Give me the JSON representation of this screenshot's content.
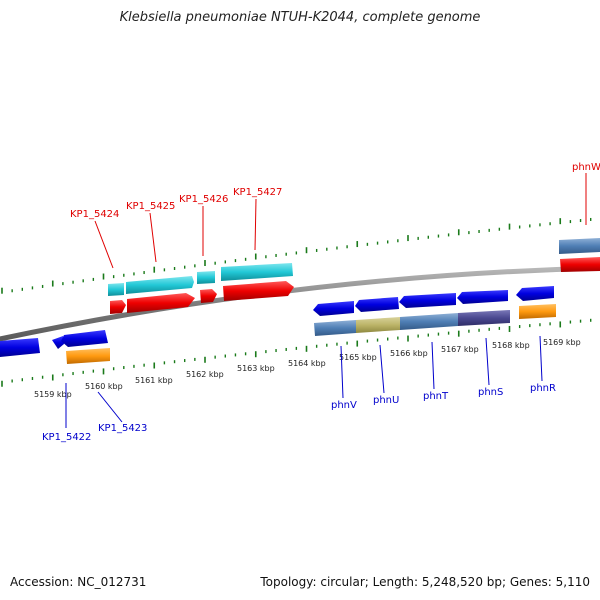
{
  "title": "Klebsiella pneumoniae NTUH-K2044, complete genome",
  "footer": {
    "accession": "Accession: NC_012731",
    "summary": "Topology: circular; Length: 5,248,520 bp; Genes: 5,110"
  },
  "colors": {
    "forward_label": "#e00000",
    "reverse_label": "#0000cc",
    "scale_ticks": "#1a7a1a",
    "backbone": "#808080"
  },
  "scale": {
    "labels": [
      "5159 kbp",
      "5160 kbp",
      "5161 kbp",
      "5162 kbp",
      "5163 kbp",
      "5164 kbp",
      "5165 kbp",
      "5166 kbp",
      "5167 kbp",
      "5168 kbp",
      "5169 kbp"
    ]
  },
  "forward_genes": [
    {
      "name": "KP1_5424"
    },
    {
      "name": "KP1_5425"
    },
    {
      "name": "KP1_5426"
    },
    {
      "name": "KP1_5427"
    },
    {
      "name": "phnW"
    }
  ],
  "reverse_genes": [
    {
      "name": "KP1_5422"
    },
    {
      "name": "KP1_5423"
    },
    {
      "name": "phnV"
    },
    {
      "name": "phnU"
    },
    {
      "name": "phnT"
    },
    {
      "name": "phnS"
    },
    {
      "name": "phnR"
    }
  ]
}
